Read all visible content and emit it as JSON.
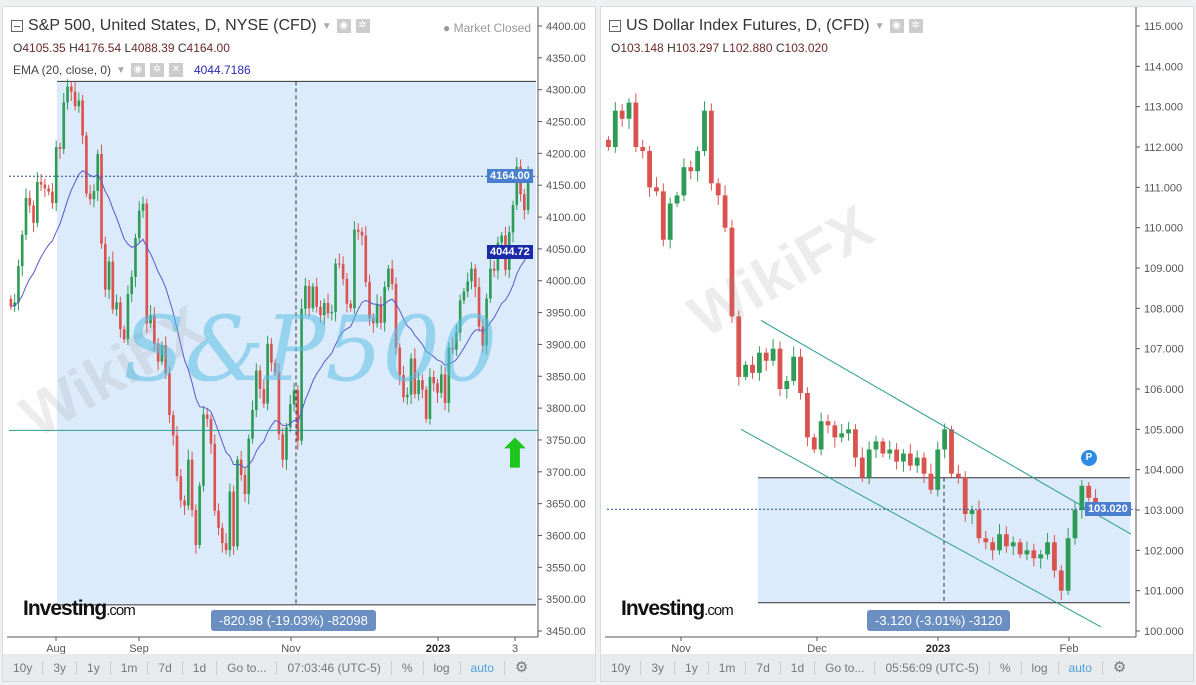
{
  "left": {
    "title": "S&P 500, United States, D, NYSE (CFD)",
    "market_status": "Market Closed",
    "ohlc": {
      "O": "4105.35",
      "H": "4176.54",
      "L": "4088.39",
      "C": "4164.00"
    },
    "indicator": {
      "label": "EMA (20, close, 0)",
      "value": "4044.7186"
    },
    "last_price_label": "4164.00",
    "ema_price_label": "4044.72",
    "measure_label": "-820.98 (-19.03%) -82098",
    "logo": "Investing.com",
    "time_labels": [
      "Aug",
      "Sep",
      "Nov",
      "2023",
      "3"
    ],
    "clock": "07:03:46 (UTC-5)",
    "colors": {
      "up": "#2e9c57",
      "down": "#d9534f",
      "ema": "#5a5acb",
      "price_tag": "#4a7fd0",
      "ema_tag": "#1b2aa8",
      "shade": "#dcebfb",
      "hline": "#2a9d8f"
    }
  },
  "right": {
    "title": "US Dollar Index Futures, D, (CFD)",
    "ohlc": {
      "O": "103.148",
      "H": "103.297",
      "L": "102.880",
      "C": "103.020"
    },
    "last_price_label": "103.020",
    "measure_label": "-3.120 (-3.01%) -3120",
    "logo": "Investing.com",
    "time_labels": [
      "Nov",
      "Dec",
      "2023",
      "Feb"
    ],
    "clock": "05:56:09 (UTC-5)",
    "badge": "P"
  },
  "toolbar": [
    "10y",
    "3y",
    "1y",
    "1m",
    "7d",
    "1d",
    "Go to...",
    "%",
    "log",
    "auto"
  ],
  "watermark": {
    "overlay": "S&P500",
    "brand": "WikiFX"
  },
  "chart_data": [
    {
      "type": "candlestick",
      "title": "S&P 500, United States, D, NYSE (CFD)",
      "ylim": [
        3450,
        4400
      ],
      "yticks": [
        4400,
        4350,
        4300,
        4250,
        4200,
        4150,
        4100,
        4050,
        4000,
        3950,
        3900,
        3850,
        3800,
        3750,
        3700,
        3650,
        3600,
        3550,
        3500,
        3450
      ],
      "closes": [
        3960,
        3966,
        4023,
        4072,
        4130,
        4118,
        4091,
        4155,
        4151,
        4145,
        4140,
        4122,
        4210,
        4207,
        4280,
        4305,
        4297,
        4274,
        4283,
        4228,
        4137,
        4128,
        4141,
        4199,
        4058,
        3986,
        4030,
        3955,
        3966,
        3924,
        3908,
        3979,
        4006,
        4067,
        4110,
        4121,
        3933,
        3946,
        3901,
        3873,
        3899,
        3855,
        3789,
        3757,
        3693,
        3655,
        3647,
        3719,
        3640,
        3585,
        3678,
        3790,
        3783,
        3744,
        3639,
        3612,
        3588,
        3577,
        3669,
        3583,
        3719,
        3695,
        3665,
        3752,
        3797,
        3859,
        3830,
        3807,
        3901,
        3871,
        3856,
        3759,
        3719,
        3770,
        3806,
        3828,
        3749,
        3956,
        3992,
        3957,
        3991,
        3959,
        3946,
        3965,
        3949,
        3951,
        4027,
        4026,
        4003,
        3964,
        3957,
        4080,
        4077,
        4071,
        3998,
        3941,
        3933,
        3963,
        3934,
        3990,
        4019,
        3995,
        3895,
        3852,
        3817,
        3821,
        3878,
        3822,
        3844,
        3829,
        3783,
        3849,
        3839,
        3824,
        3853,
        3808,
        3895,
        3892,
        3919,
        3969,
        3983,
        3999,
        4019,
        3990,
        3928,
        3898,
        3972,
        4019,
        4016,
        4060,
        4071,
        4017,
        4076,
        4119,
        4179,
        4136,
        4111,
        4164
      ],
      "hline": 3765,
      "last": 4164,
      "ema_last": 4044.72
    },
    {
      "type": "candlestick",
      "title": "US Dollar Index Futures, D, (CFD)",
      "ylim": [
        100,
        115
      ],
      "yticks": [
        115,
        114,
        113,
        112,
        111,
        110,
        109,
        108,
        107,
        106,
        105,
        104,
        103,
        102,
        101,
        100
      ],
      "closes": [
        112.0,
        112.9,
        112.7,
        113.1,
        112.0,
        111.9,
        111.0,
        110.9,
        109.7,
        110.6,
        110.8,
        111.5,
        111.4,
        111.9,
        112.9,
        111.1,
        110.8,
        110.0,
        107.8,
        106.3,
        106.6,
        106.4,
        106.9,
        106.7,
        107.0,
        106.0,
        106.2,
        106.8,
        105.9,
        104.8,
        104.5,
        105.2,
        105.1,
        104.8,
        104.9,
        105.0,
        104.3,
        103.8,
        104.5,
        104.7,
        104.4,
        104.5,
        104.2,
        104.4,
        104.1,
        104.3,
        103.9,
        103.5,
        104.5,
        105.0,
        103.9,
        103.8,
        102.9,
        103.0,
        102.3,
        102.2,
        102.0,
        102.4,
        102.1,
        102.2,
        101.9,
        102.0,
        101.8,
        101.9,
        102.2,
        101.5,
        101.0,
        102.3,
        103.0,
        103.6,
        103.3,
        103.02
      ],
      "last": 103.02
    }
  ]
}
